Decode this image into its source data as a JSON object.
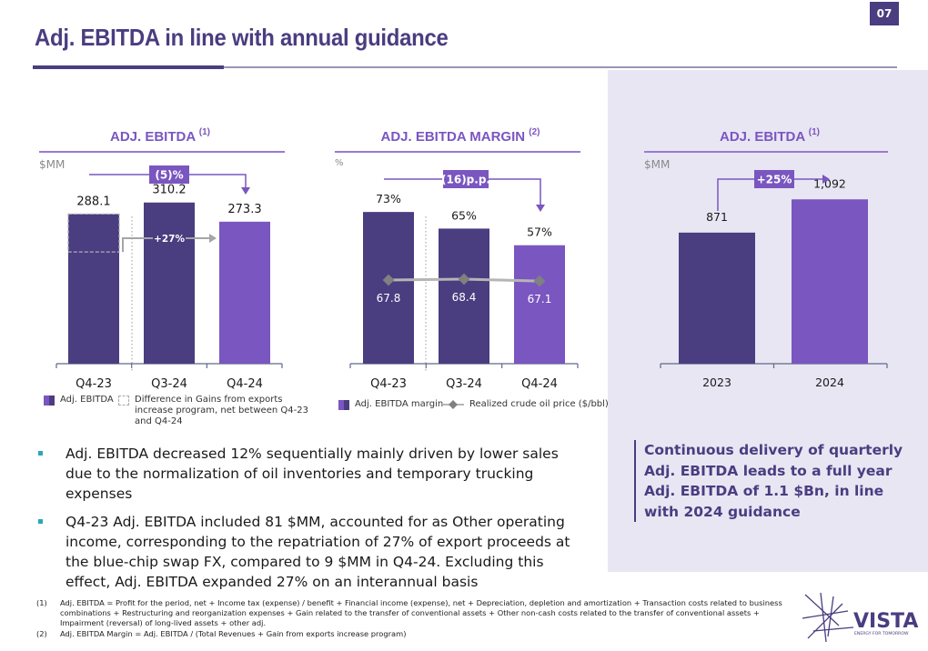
{
  "page_number": "07",
  "title": "Adj. EBITDA in line with annual guidance",
  "colors": {
    "dark": "#4a3d80",
    "accent": "#7a56c0",
    "panel": "#e8e6f3",
    "line": "#b5b5b5",
    "marker": "#808080"
  },
  "chart_data": [
    {
      "type": "bar",
      "title": "ADJ. EBITDA",
      "title_note": "(1)",
      "unit": "$MM",
      "categories": [
        "Q4-23",
        "Q3-24",
        "Q4-24"
      ],
      "values": [
        288.1,
        310.2,
        273.3
      ],
      "value_labels": [
        "288.1",
        "310.2",
        "273.3"
      ],
      "adjusted_q4_23_base": 215,
      "annotations": {
        "change_badge": "(5)%",
        "interannual_badge": "+27%"
      },
      "legend": [
        "Adj. EBITDA",
        "Difference in Gains from exports increase program, net between Q4-23 and Q4-24"
      ],
      "ylim": [
        0,
        420
      ]
    },
    {
      "type": "bar",
      "title": "ADJ. EBITDA MARGIN",
      "title_note": "(2)",
      "unit": "%",
      "categories": [
        "Q4-23",
        "Q3-24",
        "Q4-24"
      ],
      "series": [
        {
          "name": "Adj. EBITDA margin",
          "values": [
            73,
            65,
            57
          ],
          "labels": [
            "73%",
            "65%",
            "57%"
          ]
        },
        {
          "name": "Realized crude oil price ($/bbl)",
          "type": "line",
          "values": [
            67.8,
            68.4,
            67.1
          ],
          "labels": [
            "67.8",
            "68.4",
            "67.1"
          ]
        }
      ],
      "annotations": {
        "change_badge": "(16)p.p."
      },
      "legend": [
        "Adj. EBITDA margin",
        "Realized crude oil price ($/bbl)"
      ],
      "ylim": [
        0,
        105
      ]
    },
    {
      "type": "bar",
      "title": "ADJ. EBITDA",
      "title_note": "(1)",
      "unit": "$MM",
      "categories": [
        "2023",
        "2024"
      ],
      "values": [
        871,
        1092
      ],
      "value_labels": [
        "871",
        "1,092"
      ],
      "annotations": {
        "change_badge": "+25%"
      },
      "ylim": [
        0,
        1450
      ]
    }
  ],
  "bullets": [
    "Adj. EBITDA decreased 12% sequentially mainly driven by lower sales due to the normalization of oil inventories and temporary trucking expenses",
    "Q4-23 Adj. EBITDA included 81 $MM, accounted for as Other operating income, corresponding to the repatriation of 27% of export proceeds at the blue-chip swap FX, compared to 9 $MM in Q4-24. Excluding this effect, Adj. EBITDA expanded 27% on an interannual basis"
  ],
  "callout": "Continuous delivery of quarterly Adj. EBITDA leads to a full year Adj. EBITDA of 1.1 $Bn, in line with 2024 guidance",
  "footnotes": [
    {
      "n": "(1)",
      "text": "Adj. EBITDA = Profit for the period, net + Income tax (expense) / benefit + Financial income (expense), net + Depreciation, depletion and amortization + Transaction costs related to business combinations + Restructuring and reorganization expenses + Gain related to the transfer of conventional assets + Other non-cash costs related to the transfer of conventional assets + Impairment (reversal) of long-lived assets + other adj."
    },
    {
      "n": "(2)",
      "text": "Adj. EBITDA Margin = Adj. EBITDA / (Total Revenues + Gain from exports increase program)"
    }
  ],
  "logo": {
    "name": "VISTA",
    "tagline": "ENERGY FOR TOMORROW"
  }
}
